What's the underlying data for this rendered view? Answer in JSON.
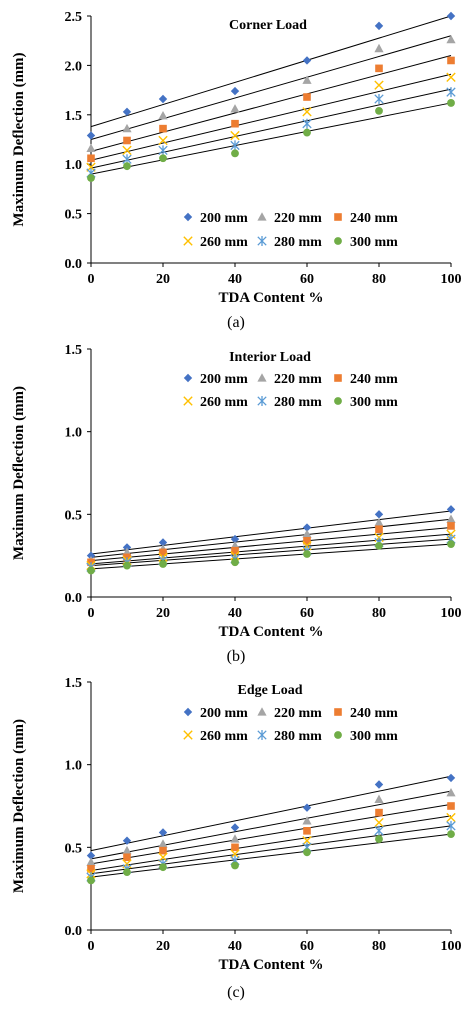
{
  "series_style": {
    "200 mm": {
      "color": "#4472C4",
      "marker": "diamond"
    },
    "220 mm": {
      "color": "#A5A5A5",
      "marker": "triangle"
    },
    "240 mm": {
      "color": "#ED7D31",
      "marker": "square"
    },
    "260 mm": {
      "color": "#FFC000",
      "marker": "x"
    },
    "280 mm": {
      "color": "#5B9BD5",
      "marker": "star"
    },
    "300 mm": {
      "color": "#70AD47",
      "marker": "circle"
    }
  },
  "chart_data": [
    {
      "type": "scatter",
      "title": "Corner Load",
      "xlabel": "TDA Content %",
      "ylabel": "Maximum Deflection (mm)",
      "caption": "(a)",
      "xlim": [
        0,
        100
      ],
      "ylim": [
        0,
        2.5
      ],
      "x_ticks": [
        0,
        20,
        40,
        60,
        80,
        100
      ],
      "y_ticks": [
        "0.0",
        "0.5",
        "1.0",
        "1.5",
        "2.0",
        "2.5"
      ],
      "grid": false,
      "legend_position": "lower-right",
      "x": [
        0,
        10,
        20,
        40,
        60,
        80,
        100
      ],
      "series": [
        {
          "name": "200 mm",
          "values": [
            1.29,
            1.53,
            1.66,
            1.74,
            2.05,
            2.4,
            2.5
          ],
          "trend": [
            1.38,
            2.5
          ]
        },
        {
          "name": "220 mm",
          "values": [
            1.16,
            1.36,
            1.49,
            1.56,
            1.85,
            2.17,
            2.26
          ],
          "trend": [
            1.25,
            2.3
          ]
        },
        {
          "name": "240 mm",
          "values": [
            1.06,
            1.24,
            1.36,
            1.41,
            1.68,
            1.97,
            2.05
          ],
          "trend": [
            1.13,
            2.1
          ]
        },
        {
          "name": "260 mm",
          "values": [
            0.97,
            1.14,
            1.24,
            1.29,
            1.53,
            1.8,
            1.88
          ],
          "trend": [
            1.04,
            1.91
          ]
        },
        {
          "name": "280 mm",
          "values": [
            0.91,
            1.05,
            1.14,
            1.19,
            1.41,
            1.66,
            1.73
          ],
          "trend": [
            0.96,
            1.76
          ]
        },
        {
          "name": "300 mm",
          "values": [
            0.86,
            0.98,
            1.06,
            1.11,
            1.32,
            1.54,
            1.62
          ],
          "trend": [
            0.9,
            1.62
          ]
        }
      ]
    },
    {
      "type": "scatter",
      "title": "Interior Load",
      "xlabel": "TDA Content %",
      "ylabel": "Maximum Deflection (mm)",
      "caption": "(b)",
      "xlim": [
        0,
        100
      ],
      "ylim": [
        0,
        1.5
      ],
      "x_ticks": [
        0,
        20,
        40,
        60,
        80,
        100
      ],
      "y_ticks": [
        "0.0",
        "0.5",
        "1.0",
        "1.5"
      ],
      "grid": false,
      "legend_position": "top-right",
      "x": [
        0,
        10,
        20,
        40,
        60,
        80,
        100
      ],
      "series": [
        {
          "name": "200 mm",
          "values": [
            0.25,
            0.3,
            0.33,
            0.35,
            0.42,
            0.5,
            0.53
          ],
          "trend": [
            0.26,
            0.52
          ]
        },
        {
          "name": "220 mm",
          "values": [
            0.22,
            0.27,
            0.29,
            0.31,
            0.38,
            0.45,
            0.47
          ],
          "trend": [
            0.24,
            0.47
          ]
        },
        {
          "name": "240 mm",
          "values": [
            0.21,
            0.24,
            0.27,
            0.28,
            0.34,
            0.41,
            0.43
          ],
          "trend": [
            0.22,
            0.42
          ]
        },
        {
          "name": "260 mm",
          "values": [
            0.19,
            0.22,
            0.24,
            0.25,
            0.31,
            0.36,
            0.38
          ],
          "trend": [
            0.2,
            0.38
          ]
        },
        {
          "name": "280 mm",
          "values": [
            0.18,
            0.21,
            0.22,
            0.23,
            0.28,
            0.33,
            0.35
          ],
          "trend": [
            0.19,
            0.35
          ]
        },
        {
          "name": "300 mm",
          "values": [
            0.16,
            0.19,
            0.2,
            0.21,
            0.26,
            0.31,
            0.32
          ],
          "trend": [
            0.17,
            0.32
          ]
        }
      ]
    },
    {
      "type": "scatter",
      "title": "Edge Load",
      "xlabel": "TDA Content %",
      "ylabel": "Maximum Deflection (mm)",
      "caption": "(c)",
      "xlim": [
        0,
        100
      ],
      "ylim": [
        0,
        1.5
      ],
      "x_ticks": [
        0,
        20,
        40,
        60,
        80,
        100
      ],
      "y_ticks": [
        "0.0",
        "0.5",
        "1.0",
        "1.5"
      ],
      "grid": false,
      "legend_position": "top-right",
      "x": [
        0,
        10,
        20,
        40,
        60,
        80,
        100
      ],
      "series": [
        {
          "name": "200 mm",
          "values": [
            0.45,
            0.54,
            0.59,
            0.62,
            0.74,
            0.88,
            0.92
          ],
          "trend": [
            0.48,
            0.93
          ]
        },
        {
          "name": "220 mm",
          "values": [
            0.41,
            0.48,
            0.52,
            0.55,
            0.66,
            0.79,
            0.83
          ],
          "trend": [
            0.43,
            0.84
          ]
        },
        {
          "name": "240 mm",
          "values": [
            0.37,
            0.44,
            0.48,
            0.5,
            0.6,
            0.71,
            0.75
          ],
          "trend": [
            0.4,
            0.76
          ]
        },
        {
          "name": "260 mm",
          "values": [
            0.34,
            0.4,
            0.44,
            0.46,
            0.54,
            0.65,
            0.68
          ],
          "trend": [
            0.36,
            0.69
          ]
        },
        {
          "name": "280 mm",
          "values": [
            0.32,
            0.37,
            0.4,
            0.42,
            0.5,
            0.6,
            0.63
          ],
          "trend": [
            0.34,
            0.63
          ]
        },
        {
          "name": "300 mm",
          "values": [
            0.3,
            0.35,
            0.38,
            0.39,
            0.47,
            0.55,
            0.58
          ],
          "trend": [
            0.32,
            0.58
          ]
        }
      ]
    }
  ]
}
